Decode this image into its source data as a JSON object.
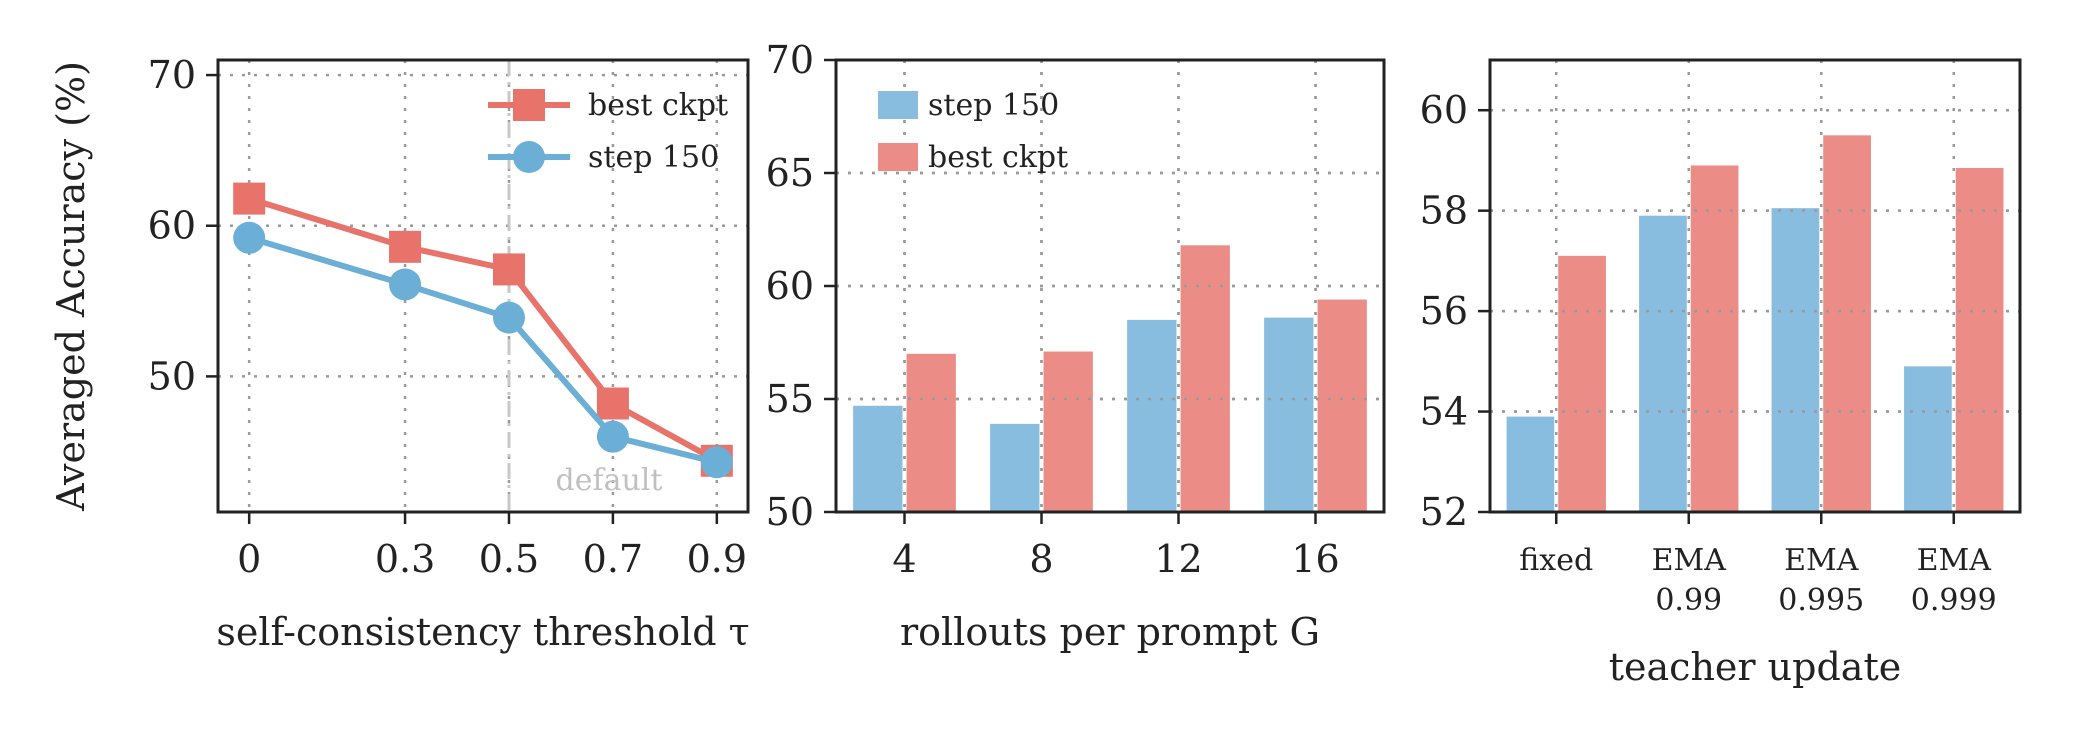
{
  "colors": {
    "blue_line": "#6baed6",
    "red_line": "#e8736b",
    "blue_bar": "#89bddf",
    "red_bar": "#ec8c86",
    "default_line": "#c8c8c8",
    "default_text": "#c0c0c0"
  },
  "chart_data": [
    {
      "type": "line",
      "ylabel": "Averaged Accuracy (%)",
      "xlabel": "self-consistency threshold τ",
      "x": [
        0,
        0.3,
        0.5,
        0.7,
        0.9
      ],
      "xticks": [
        "0",
        "0.3",
        "0.5",
        "0.7",
        "0.9"
      ],
      "xlim": [
        -0.06,
        0.96
      ],
      "ylim": [
        41,
        71
      ],
      "yticks": [
        50,
        60,
        70
      ],
      "grid": true,
      "legend": "top-right",
      "annotation": {
        "text": "default",
        "x": 0.5
      },
      "series": [
        {
          "name": "best ckpt",
          "marker": "square",
          "values": [
            61.8,
            58.6,
            57.1,
            48.2,
            44.4
          ]
        },
        {
          "name": "step 150",
          "marker": "circle",
          "values": [
            59.2,
            56.1,
            53.9,
            46.0,
            44.3
          ]
        }
      ]
    },
    {
      "type": "bar",
      "xlabel": "rollouts per prompt G",
      "categories": [
        "4",
        "8",
        "12",
        "16"
      ],
      "ylim": [
        50,
        70
      ],
      "yticks": [
        50,
        55,
        60,
        65,
        70
      ],
      "grid": true,
      "legend": "top-left",
      "series": [
        {
          "name": "step 150",
          "values": [
            54.7,
            53.9,
            58.5,
            58.6
          ]
        },
        {
          "name": "best ckpt",
          "values": [
            57.0,
            57.1,
            61.8,
            59.4
          ]
        }
      ]
    },
    {
      "type": "bar",
      "xlabel": "teacher update",
      "categories": [
        [
          "fixed"
        ],
        [
          "EMA",
          "0.99"
        ],
        [
          "EMA",
          "0.995"
        ],
        [
          "EMA",
          "0.999"
        ]
      ],
      "ylim": [
        52,
        61
      ],
      "yticks": [
        52,
        54,
        56,
        58,
        60
      ],
      "grid": true,
      "series": [
        {
          "name": "step 150",
          "values": [
            53.9,
            57.9,
            58.05,
            54.9
          ]
        },
        {
          "name": "best ckpt",
          "values": [
            57.1,
            58.9,
            59.5,
            58.85
          ]
        }
      ]
    }
  ]
}
